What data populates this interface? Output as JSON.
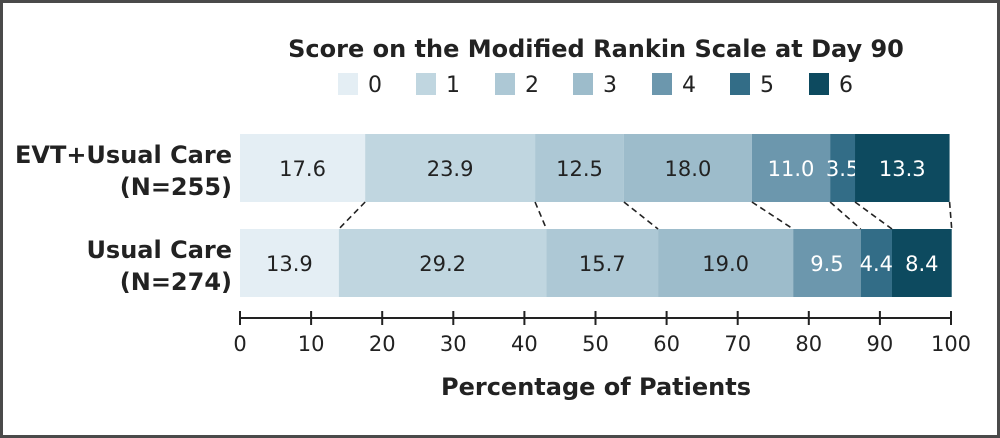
{
  "chart_data": {
    "type": "bar",
    "orientation": "horizontal",
    "stacked": true,
    "legend_title": "Score on the Modified Rankin Scale at Day 90",
    "legend_position": "top",
    "categories": [
      "0",
      "1",
      "2",
      "3",
      "4",
      "5",
      "6"
    ],
    "colors": [
      "#e4eef4",
      "#c0d6e0",
      "#adc8d5",
      "#9dbccb",
      "#6c97ad",
      "#336d87",
      "#0d4a5f"
    ],
    "label_colors": [
      "#222222",
      "#222222",
      "#222222",
      "#222222",
      "#ffffff",
      "#ffffff",
      "#ffffff"
    ],
    "groups": [
      {
        "name_line1": "EVT+Usual Care",
        "name_line2": "(N=255)",
        "values": [
          17.6,
          23.9,
          12.5,
          18.0,
          11.0,
          3.5,
          13.3
        ]
      },
      {
        "name_line1": "Usual Care",
        "name_line2": "(N=274)",
        "values": [
          13.9,
          29.2,
          15.7,
          19.0,
          9.5,
          4.4,
          8.4
        ]
      }
    ],
    "xlabel": "Percentage of Patients",
    "xlim": [
      0,
      100
    ],
    "xticks": [
      0,
      10,
      20,
      30,
      40,
      50,
      60,
      70,
      80,
      90,
      100
    ],
    "grid": false
  }
}
